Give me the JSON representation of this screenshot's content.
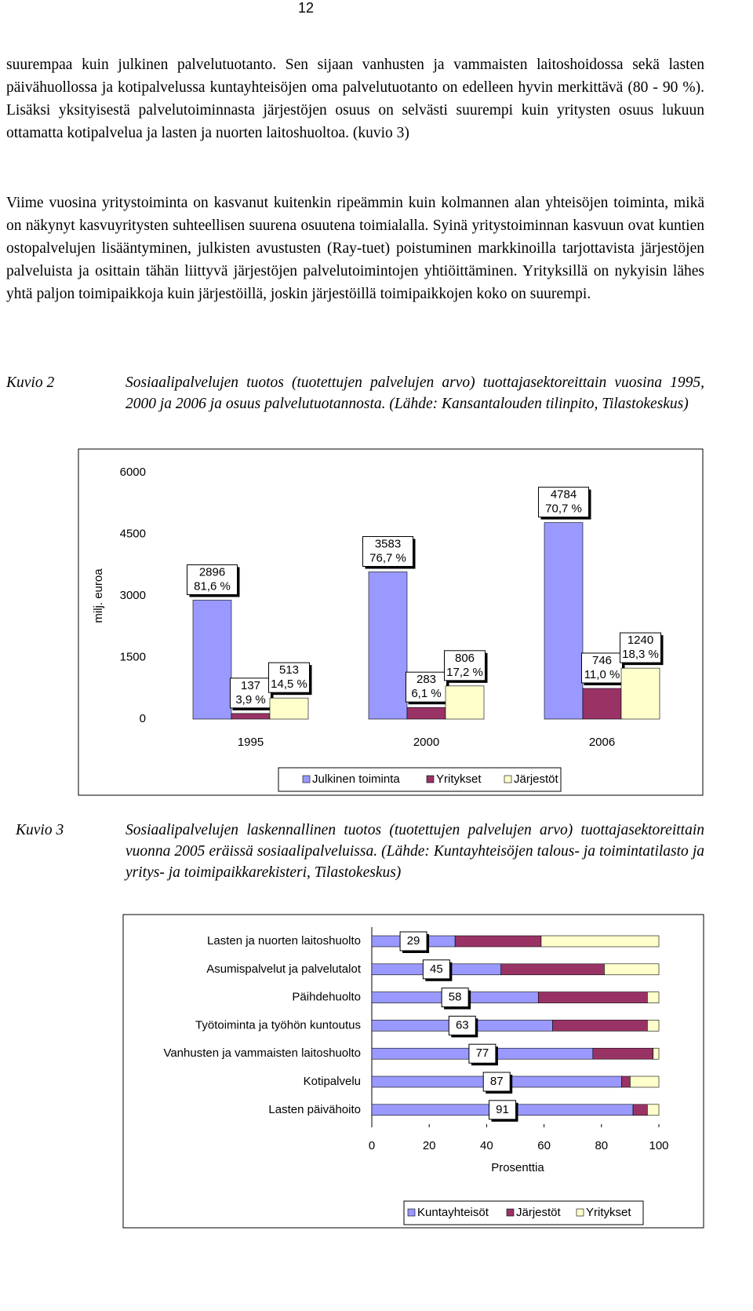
{
  "page_number": "12",
  "paragraphs": [
    "suurempaa kuin julkinen palvelutuotanto. Sen sijaan vanhusten ja vammaisten laitoshoidossa sekä lasten päivähuollossa ja kotipalvelussa kuntayhteisöjen oma palvelutuotanto on edelleen hyvin merkittävä (80 - 90 %). Lisäksi yksityisestä palvelutoiminnasta järjestöjen osuus on selvästi suurempi kuin yritysten osuus lukuun ottamatta kotipalvelua ja lasten ja nuorten laitoshuoltoa. (kuvio 3)",
    "Viime vuosina yritystoiminta on kasvanut kuitenkin ripeämmin kuin kolmannen alan yhteisöjen toiminta, mikä on näkynyt kasvuyritysten suhteellisen suurena osuutena toimialalla. Syinä yritystoiminnan kasvuun ovat kuntien ostopalvelujen lisääntyminen, julkisten avustusten (Ray-tuet) poistuminen markkinoilla tarjottavista järjestöjen palveluista ja osittain tähän liittyvä järjestöjen palvelutoimintojen yhtiöittäminen. Yrityksillä on nykyisin lähes yhtä paljon toimipaikkoja kuin järjestöillä, joskin järjestöillä toimipaikkojen koko on suurempi."
  ],
  "figures": [
    {
      "label": "Kuvio 2",
      "caption": "Sosiaalipalvelujen tuotos (tuotettujen palvelujen arvo) tuottajasektoreittain vuosina 1995, 2000 ja 2006 ja osuus palvelutuotannosta. (Lähde: Kansantalouden tilinpito, Tilastokeskus)"
    },
    {
      "label": "Kuvio 3",
      "caption": "Sosiaalipalvelujen laskennallinen tuotos (tuotettujen palvelujen arvo) tuottajasektoreittain vuonna 2005 eräissä sosiaalipalveluissa. (Lähde: Kuntayhteisöjen talous- ja toimintatilasto ja yritys- ja toimipaikkarekisteri, Tilastokeskus)"
    }
  ],
  "chart_data": [
    {
      "type": "bar",
      "ylabel": "milj. euroa",
      "categories": [
        "1995",
        "2000",
        "2006"
      ],
      "series": [
        {
          "name": "Julkinen toiminta",
          "color": "#9999ff",
          "values": [
            2896,
            3583,
            4784
          ],
          "share_labels": [
            "81,6 %",
            "76,7 %",
            "70,7 %"
          ]
        },
        {
          "name": "Yritykset",
          "color": "#993366",
          "values": [
            137,
            283,
            746
          ],
          "share_labels": [
            "3,9 %",
            "6,1 %",
            "11,0 %"
          ]
        },
        {
          "name": "Järjestöt",
          "color": "#ffffcc",
          "values": [
            513,
            806,
            1240
          ],
          "share_labels": [
            "14,5 %",
            "17,2 %",
            "18,3 %"
          ]
        }
      ],
      "ylim": [
        0,
        6000
      ],
      "yticks": [
        0,
        1500,
        3000,
        4500,
        6000
      ],
      "legend": "bottom"
    },
    {
      "type": "stacked-hbar",
      "xlabel": "Prosenttia",
      "categories": [
        "Lasten ja nuorten laitoshuolto",
        "Asumispalvelut ja palvelutalot",
        "Päihdehuolto",
        "Työtoiminta ja työhön kuntoutus",
        "Vanhusten ja vammaisten laitoshuolto",
        "Kotipalvelu",
        "Lasten päivähoito"
      ],
      "series": [
        {
          "name": "Kuntayhteisöt",
          "color": "#9999ff",
          "values": [
            29,
            45,
            58,
            63,
            77,
            87,
            91
          ]
        },
        {
          "name": "Järjestöt",
          "color": "#993366",
          "values": [
            30,
            36,
            38,
            33,
            21,
            3,
            5
          ]
        },
        {
          "name": "Yritykset",
          "color": "#ffffcc",
          "values": [
            41,
            19,
            4,
            4,
            2,
            10,
            4
          ]
        }
      ],
      "xlim": [
        0,
        100
      ],
      "xticks": [
        0,
        20,
        40,
        60,
        80,
        100
      ],
      "legend": "bottom"
    }
  ]
}
